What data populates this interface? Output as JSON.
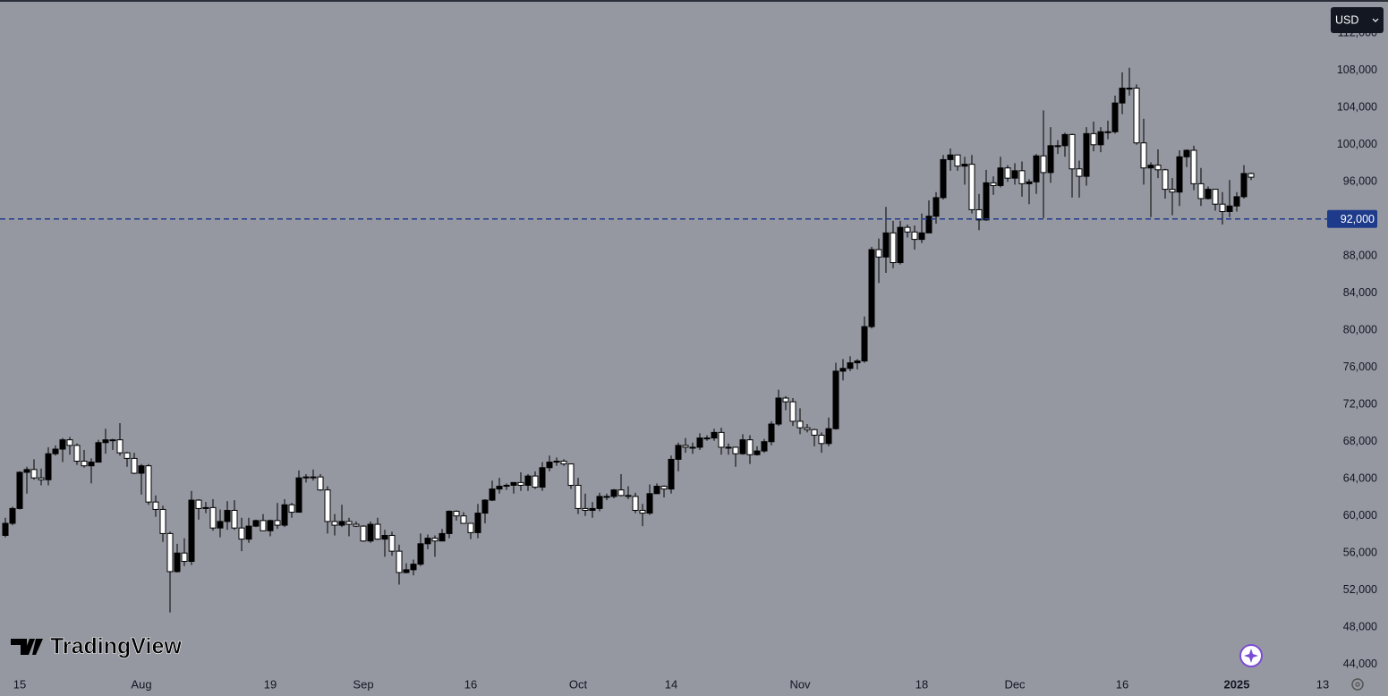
{
  "chart_data": {
    "type": "candlestick",
    "currency": "USD",
    "watermark": "TradingView",
    "up_color": "#000000",
    "down_color": "#ffffff",
    "wick_color": "#000000",
    "ylim": [
      43100,
      115600
    ],
    "yticks": [
      {
        "value": 44000,
        "label": "44,000"
      },
      {
        "value": 48000,
        "label": "48,000"
      },
      {
        "value": 52000,
        "label": "52,000"
      },
      {
        "value": 56000,
        "label": "56,000"
      },
      {
        "value": 60000,
        "label": "60,000"
      },
      {
        "value": 64000,
        "label": "64,000"
      },
      {
        "value": 68000,
        "label": "68,000"
      },
      {
        "value": 72000,
        "label": "72,000"
      },
      {
        "value": 76000,
        "label": "76,000"
      },
      {
        "value": 80000,
        "label": "80,000"
      },
      {
        "value": 84000,
        "label": "84,000"
      },
      {
        "value": 88000,
        "label": "88,000"
      },
      {
        "value": 96000,
        "label": "96,000"
      },
      {
        "value": 100000,
        "label": "100,000"
      },
      {
        "value": 104000,
        "label": "104,000"
      },
      {
        "value": 108000,
        "label": "108,000"
      },
      {
        "value": 112000,
        "label": "112,000"
      }
    ],
    "price_line": {
      "value": 92000,
      "label": "92,000",
      "color": "#1e3a8a"
    },
    "categories": [
      null,
      null,
      "15",
      null,
      null,
      null,
      null,
      null,
      null,
      null,
      null,
      null,
      null,
      null,
      null,
      null,
      null,
      null,
      null,
      "Aug",
      null,
      null,
      null,
      null,
      null,
      null,
      null,
      null,
      null,
      null,
      null,
      null,
      null,
      null,
      null,
      null,
      null,
      "19",
      null,
      null,
      null,
      null,
      null,
      null,
      null,
      null,
      null,
      null,
      null,
      null,
      "Sep",
      null,
      null,
      null,
      null,
      null,
      null,
      null,
      null,
      null,
      null,
      null,
      null,
      null,
      null,
      "16",
      null,
      null,
      null,
      null,
      null,
      null,
      null,
      null,
      null,
      null,
      null,
      null,
      null,
      null,
      "Oct",
      null,
      null,
      null,
      null,
      null,
      null,
      null,
      null,
      null,
      null,
      null,
      null,
      "14",
      null,
      null,
      null,
      null,
      null,
      null,
      null,
      null,
      null,
      null,
      null,
      null,
      null,
      null,
      null,
      null,
      null,
      "Nov",
      null,
      null,
      null,
      null,
      null,
      null,
      null,
      null,
      null,
      null,
      null,
      null,
      null,
      null,
      null,
      null,
      "18",
      null,
      null,
      null,
      null,
      null,
      null,
      null,
      null,
      null,
      null,
      null,
      null,
      "Dec",
      null,
      null,
      null,
      null,
      null,
      null,
      null,
      null,
      null,
      null,
      null,
      null,
      null,
      null,
      "16",
      null,
      null,
      null,
      null,
      null,
      null,
      null,
      null,
      null,
      null,
      null,
      null,
      null,
      null,
      null,
      "2025",
      null,
      null,
      null,
      null,
      null,
      null,
      null,
      null,
      null,
      null,
      null,
      "13"
    ],
    "ohlc": [
      [
        57900,
        59800,
        57700,
        59200
      ],
      [
        59200,
        61000,
        59000,
        60800
      ],
      [
        60800,
        64800,
        60700,
        64700
      ],
      [
        64700,
        65300,
        62400,
        65000
      ],
      [
        65000,
        66100,
        63900,
        64100
      ],
      [
        64100,
        65100,
        63300,
        63900
      ],
      [
        63900,
        67400,
        63300,
        66700
      ],
      [
        66700,
        67600,
        66500,
        67200
      ],
      [
        67200,
        68400,
        65800,
        68200
      ],
      [
        68200,
        68500,
        66600,
        67600
      ],
      [
        67600,
        67800,
        65500,
        65900
      ],
      [
        65900,
        67100,
        65200,
        65400
      ],
      [
        65400,
        66200,
        63500,
        65800
      ],
      [
        65800,
        68200,
        65800,
        67900
      ],
      [
        67900,
        69400,
        66700,
        68200
      ],
      [
        68200,
        68300,
        67100,
        68200
      ],
      [
        68200,
        70000,
        66500,
        66800
      ],
      [
        66800,
        66900,
        65300,
        66200
      ],
      [
        66200,
        66800,
        64500,
        64600
      ],
      [
        64600,
        65600,
        62300,
        65400
      ],
      [
        65400,
        65600,
        61200,
        61500
      ],
      [
        61500,
        62200,
        59900,
        60700
      ],
      [
        60700,
        61100,
        57200,
        58100
      ],
      [
        58100,
        58300,
        49600,
        54000
      ],
      [
        54000,
        57000,
        53900,
        56000
      ],
      [
        56000,
        57600,
        54600,
        55100
      ],
      [
        55100,
        62700,
        54700,
        61700
      ],
      [
        61700,
        61800,
        59600,
        60800
      ],
      [
        60800,
        61500,
        60300,
        60900
      ],
      [
        60900,
        61800,
        58400,
        58700
      ],
      [
        58700,
        60700,
        57700,
        59400
      ],
      [
        59400,
        61600,
        58500,
        60600
      ],
      [
        60600,
        61700,
        58500,
        58700
      ],
      [
        58700,
        59800,
        56200,
        57500
      ],
      [
        57500,
        59800,
        57100,
        58900
      ],
      [
        58900,
        59600,
        58800,
        59500
      ],
      [
        59500,
        60200,
        58400,
        58400
      ],
      [
        58400,
        59600,
        57800,
        59500
      ],
      [
        59500,
        61400,
        58600,
        59000
      ],
      [
        59000,
        61800,
        58800,
        61200
      ],
      [
        61200,
        61400,
        59800,
        60400
      ],
      [
        60400,
        64900,
        60400,
        64100
      ],
      [
        64100,
        64500,
        63600,
        64200
      ],
      [
        64200,
        65000,
        63800,
        64200
      ],
      [
        64200,
        64500,
        62700,
        62800
      ],
      [
        62800,
        63200,
        58100,
        59400
      ],
      [
        59400,
        60200,
        57900,
        59000
      ],
      [
        59000,
        61200,
        58800,
        59400
      ],
      [
        59400,
        59800,
        57800,
        59100
      ],
      [
        59100,
        59400,
        58800,
        58900
      ],
      [
        58900,
        59000,
        57200,
        57300
      ],
      [
        57300,
        59400,
        57100,
        59100
      ],
      [
        59100,
        59800,
        57400,
        57500
      ],
      [
        57500,
        58500,
        55600,
        57900
      ],
      [
        57900,
        58300,
        55700,
        56200
      ],
      [
        56200,
        56900,
        52600,
        53900
      ],
      [
        53900,
        54900,
        53800,
        54200
      ],
      [
        54200,
        55300,
        53600,
        54800
      ],
      [
        54800,
        58100,
        54600,
        57000
      ],
      [
        57000,
        58000,
        56400,
        57600
      ],
      [
        57600,
        57900,
        55600,
        57300
      ],
      [
        57300,
        58600,
        57300,
        58100
      ],
      [
        58100,
        60600,
        57600,
        60500
      ],
      [
        60500,
        60600,
        59500,
        60000
      ],
      [
        60000,
        60400,
        59500,
        59200
      ],
      [
        59200,
        59200,
        57500,
        58200
      ],
      [
        58200,
        61300,
        57600,
        60300
      ],
      [
        60300,
        61800,
        59200,
        61700
      ],
      [
        61700,
        63800,
        61600,
        62900
      ],
      [
        62900,
        64100,
        62400,
        63200
      ],
      [
        63200,
        63500,
        62800,
        63300
      ],
      [
        63300,
        63600,
        62400,
        63600
      ],
      [
        63600,
        64700,
        62700,
        63300
      ],
      [
        63300,
        64500,
        62700,
        64300
      ],
      [
        64300,
        64800,
        62900,
        63100
      ],
      [
        63100,
        65800,
        62700,
        65200
      ],
      [
        65200,
        66500,
        64800,
        65800
      ],
      [
        65800,
        66300,
        65400,
        65900
      ],
      [
        65900,
        66100,
        65400,
        65600
      ],
      [
        65600,
        65600,
        62900,
        63300
      ],
      [
        63300,
        64100,
        60200,
        60800
      ],
      [
        60800,
        62400,
        60000,
        60600
      ],
      [
        60600,
        61500,
        59800,
        60800
      ],
      [
        60800,
        62500,
        60500,
        62100
      ],
      [
        62100,
        62400,
        61700,
        62100
      ],
      [
        62100,
        62900,
        61900,
        62800
      ],
      [
        62800,
        64500,
        62100,
        62200
      ],
      [
        62200,
        63200,
        61800,
        62100
      ],
      [
        62100,
        62500,
        60300,
        60600
      ],
      [
        60600,
        61300,
        58900,
        60300
      ],
      [
        60300,
        63400,
        60100,
        62400
      ],
      [
        62400,
        63500,
        62400,
        63200
      ],
      [
        63200,
        63300,
        62000,
        62900
      ],
      [
        62900,
        66500,
        62400,
        66100
      ],
      [
        66100,
        67900,
        64800,
        67600
      ],
      [
        67600,
        68400,
        66800,
        67400
      ],
      [
        67400,
        67900,
        66700,
        67400
      ],
      [
        67400,
        68900,
        67100,
        68400
      ],
      [
        68400,
        68700,
        68100,
        68400
      ],
      [
        68400,
        69400,
        68100,
        69000
      ],
      [
        69000,
        69500,
        66600,
        67400
      ],
      [
        67400,
        67800,
        66600,
        67400
      ],
      [
        67400,
        67400,
        65300,
        66700
      ],
      [
        66700,
        68800,
        66600,
        68200
      ],
      [
        68200,
        68700,
        65600,
        66600
      ],
      [
        66600,
        67500,
        66500,
        67000
      ],
      [
        67000,
        68300,
        66800,
        68000
      ],
      [
        68000,
        70200,
        67600,
        69900
      ],
      [
        69900,
        73600,
        69700,
        72700
      ],
      [
        72700,
        72900,
        71400,
        72300
      ],
      [
        72300,
        72700,
        69700,
        70200
      ],
      [
        70200,
        71600,
        68800,
        69500
      ],
      [
        69500,
        69900,
        69000,
        69300
      ],
      [
        69300,
        69400,
        67500,
        68700
      ],
      [
        68700,
        69000,
        66800,
        67800
      ],
      [
        67800,
        70600,
        67500,
        69400
      ],
      [
        69400,
        76500,
        69300,
        75600
      ],
      [
        75600,
        76900,
        74600,
        75900
      ],
      [
        75900,
        77200,
        75600,
        76500
      ],
      [
        76500,
        76900,
        75800,
        76700
      ],
      [
        76700,
        81500,
        76500,
        80400
      ],
      [
        80400,
        89000,
        80200,
        88700
      ],
      [
        88700,
        89900,
        85100,
        87900
      ],
      [
        87900,
        93300,
        86200,
        90500
      ],
      [
        90500,
        91800,
        86700,
        87300
      ],
      [
        87300,
        91800,
        87100,
        91100
      ],
      [
        91100,
        91400,
        90000,
        90600
      ],
      [
        90600,
        91300,
        88700,
        89800
      ],
      [
        89800,
        92600,
        89400,
        90500
      ],
      [
        90500,
        94000,
        90500,
        92300
      ],
      [
        92300,
        94900,
        91500,
        94300
      ],
      [
        94300,
        98900,
        94100,
        98400
      ],
      [
        98400,
        99600,
        97200,
        98900
      ],
      [
        98900,
        98900,
        97200,
        97700
      ],
      [
        97700,
        98700,
        95700,
        97900
      ],
      [
        97900,
        98900,
        92600,
        93000
      ],
      [
        93000,
        94700,
        90800,
        91900
      ],
      [
        91900,
        97300,
        91800,
        95900
      ],
      [
        95900,
        96600,
        94600,
        95600
      ],
      [
        95600,
        98700,
        95400,
        97500
      ],
      [
        97500,
        97800,
        96000,
        96400
      ],
      [
        96400,
        98000,
        95700,
        97200
      ],
      [
        97200,
        98200,
        94400,
        95800
      ],
      [
        95800,
        96300,
        93600,
        96000
      ],
      [
        96000,
        99000,
        94700,
        98800
      ],
      [
        98800,
        103700,
        92100,
        97000
      ],
      [
        97000,
        101900,
        95900,
        99900
      ],
      [
        99900,
        100500,
        99000,
        99900
      ],
      [
        99900,
        101300,
        98700,
        101100
      ],
      [
        101100,
        101200,
        94300,
        97400
      ],
      [
        97400,
        98300,
        94300,
        96600
      ],
      [
        96600,
        101900,
        95600,
        101200
      ],
      [
        101200,
        102500,
        99300,
        100000
      ],
      [
        100000,
        101900,
        99200,
        101400
      ],
      [
        101400,
        102600,
        100600,
        101400
      ],
      [
        101400,
        105300,
        101200,
        104500
      ],
      [
        104500,
        107800,
        103300,
        106100
      ],
      [
        106100,
        108300,
        105300,
        106100
      ],
      [
        106100,
        106500,
        100000,
        100200
      ],
      [
        100200,
        102800,
        95700,
        97500
      ],
      [
        97500,
        98100,
        92200,
        97800
      ],
      [
        97800,
        99500,
        96400,
        97300
      ],
      [
        97300,
        97400,
        94200,
        95200
      ],
      [
        95200,
        96400,
        92400,
        94900
      ],
      [
        94900,
        99400,
        93400,
        98700
      ],
      [
        98700,
        99500,
        97600,
        99400
      ],
      [
        99400,
        99900,
        95100,
        95800
      ],
      [
        95800,
        97500,
        93400,
        94200
      ],
      [
        94200,
        95500,
        94100,
        95200
      ],
      [
        95200,
        95200,
        92900,
        93600
      ],
      [
        93600,
        94900,
        91400,
        92800
      ],
      [
        92800,
        96200,
        92200,
        93400
      ],
      [
        93400,
        94900,
        92800,
        94400
      ],
      [
        94400,
        97800,
        94200,
        96900
      ],
      [
        96900,
        97000,
        96200,
        96500
      ],
      null,
      null,
      null,
      null,
      null,
      null,
      null,
      null,
      null,
      null
    ]
  }
}
